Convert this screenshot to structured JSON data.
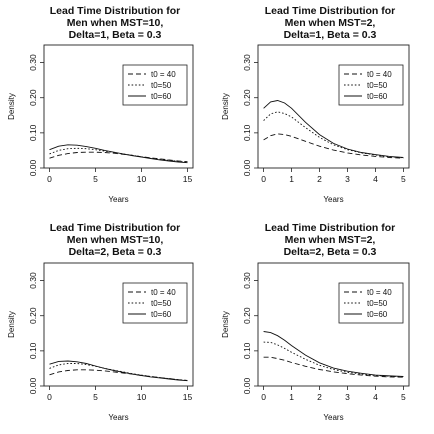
{
  "chart_data": [
    {
      "type": "line",
      "title": [
        "Lead Time Distribution for",
        "Men when MST=10,",
        "Delta=1, Beta = 0.3"
      ],
      "xlabel": "Years",
      "ylabel": "Density",
      "xlim": [
        0,
        15
      ],
      "ylim": [
        0,
        0.35
      ],
      "xticks": [
        0,
        5,
        10,
        15
      ],
      "yticks": [
        0.0,
        0.1,
        0.2,
        0.3
      ],
      "ytick_labels": [
        "0.00",
        "0.10",
        "0.20",
        "0.30"
      ],
      "legend": "top-right",
      "series": [
        {
          "name": "t0 = 40",
          "style": "dashed",
          "x": [
            0,
            1,
            2,
            3,
            4,
            5,
            6,
            7,
            8,
            9,
            10,
            11,
            12,
            13,
            14,
            15
          ],
          "y": [
            0.028,
            0.036,
            0.041,
            0.044,
            0.045,
            0.045,
            0.044,
            0.042,
            0.039,
            0.036,
            0.032,
            0.029,
            0.026,
            0.023,
            0.02,
            0.018
          ]
        },
        {
          "name": "t0=50",
          "style": "dotted",
          "x": [
            0,
            1,
            2,
            3,
            4,
            5,
            6,
            7,
            8,
            9,
            10,
            11,
            12,
            13,
            14,
            15
          ],
          "y": [
            0.04,
            0.05,
            0.055,
            0.056,
            0.055,
            0.052,
            0.048,
            0.044,
            0.04,
            0.036,
            0.032,
            0.028,
            0.025,
            0.022,
            0.019,
            0.016
          ]
        },
        {
          "name": "t0=60",
          "style": "solid",
          "x": [
            0,
            1,
            2,
            3,
            4,
            5,
            6,
            7,
            8,
            9,
            10,
            11,
            12,
            13,
            14,
            15
          ],
          "y": [
            0.052,
            0.062,
            0.066,
            0.065,
            0.061,
            0.056,
            0.05,
            0.045,
            0.04,
            0.035,
            0.031,
            0.027,
            0.023,
            0.02,
            0.017,
            0.015
          ]
        }
      ]
    },
    {
      "type": "line",
      "title": [
        "Lead Time Distribution for",
        "Men when MST=2,",
        "Delta=1, Beta = 0.3"
      ],
      "xlabel": "Years",
      "ylabel": "Density",
      "xlim": [
        0,
        5
      ],
      "ylim": [
        0,
        0.35
      ],
      "xticks": [
        0,
        1,
        2,
        3,
        4,
        5
      ],
      "yticks": [
        0.0,
        0.1,
        0.2,
        0.3
      ],
      "ytick_labels": [
        "0.00",
        "0.10",
        "0.20",
        "0.30"
      ],
      "legend": "top-right",
      "series": [
        {
          "name": "t0 = 40",
          "style": "dashed",
          "x": [
            0,
            0.25,
            0.5,
            0.75,
            1,
            1.5,
            2,
            2.5,
            3,
            3.5,
            4,
            4.5,
            5
          ],
          "y": [
            0.08,
            0.092,
            0.097,
            0.095,
            0.09,
            0.076,
            0.062,
            0.051,
            0.043,
            0.037,
            0.033,
            0.03,
            0.028
          ]
        },
        {
          "name": "t0=50",
          "style": "dotted",
          "x": [
            0,
            0.25,
            0.5,
            0.75,
            1,
            1.5,
            2,
            2.5,
            3,
            3.5,
            4,
            4.5,
            5
          ],
          "y": [
            0.135,
            0.154,
            0.16,
            0.155,
            0.145,
            0.115,
            0.087,
            0.066,
            0.052,
            0.043,
            0.037,
            0.032,
            0.029
          ]
        },
        {
          "name": "t0=60",
          "style": "solid",
          "x": [
            0,
            0.25,
            0.5,
            0.75,
            1,
            1.5,
            2,
            2.5,
            3,
            3.5,
            4,
            4.5,
            5
          ],
          "y": [
            0.17,
            0.188,
            0.192,
            0.185,
            0.17,
            0.13,
            0.095,
            0.07,
            0.054,
            0.044,
            0.038,
            0.033,
            0.03
          ]
        }
      ]
    },
    {
      "type": "line",
      "title": [
        "Lead Time Distribution for",
        "Men when MST=10,",
        "Delta=2, Beta = 0.3"
      ],
      "xlabel": "Years",
      "ylabel": "Density",
      "xlim": [
        0,
        15
      ],
      "ylim": [
        0,
        0.35
      ],
      "xticks": [
        0,
        5,
        10,
        15
      ],
      "yticks": [
        0.0,
        0.1,
        0.2,
        0.3
      ],
      "ytick_labels": [
        "0.00",
        "0.10",
        "0.20",
        "0.30"
      ],
      "legend": "top-right",
      "series": [
        {
          "name": "t0 = 40",
          "style": "dashed",
          "x": [
            0,
            1,
            2,
            3,
            4,
            5,
            6,
            7,
            8,
            9,
            10,
            11,
            12,
            13,
            14,
            15
          ],
          "y": [
            0.032,
            0.04,
            0.044,
            0.046,
            0.046,
            0.045,
            0.043,
            0.04,
            0.037,
            0.034,
            0.03,
            0.027,
            0.024,
            0.021,
            0.018,
            0.016
          ]
        },
        {
          "name": "t0=50",
          "style": "dotted",
          "x": [
            0,
            1,
            2,
            3,
            4,
            5,
            6,
            7,
            8,
            9,
            10,
            11,
            12,
            13,
            14,
            15
          ],
          "y": [
            0.05,
            0.06,
            0.064,
            0.064,
            0.061,
            0.056,
            0.05,
            0.045,
            0.04,
            0.035,
            0.031,
            0.027,
            0.024,
            0.021,
            0.018,
            0.016
          ]
        },
        {
          "name": "t0=60",
          "style": "solid",
          "x": [
            0,
            1,
            2,
            3,
            4,
            5,
            6,
            7,
            8,
            9,
            10,
            11,
            12,
            13,
            14,
            15
          ],
          "y": [
            0.062,
            0.07,
            0.071,
            0.069,
            0.064,
            0.057,
            0.05,
            0.044,
            0.039,
            0.034,
            0.03,
            0.026,
            0.023,
            0.02,
            0.017,
            0.015
          ]
        }
      ]
    },
    {
      "type": "line",
      "title": [
        "Lead Time Distribution for",
        "Men when MST=2,",
        "Delta=2, Beta = 0.3"
      ],
      "xlabel": "Years",
      "ylabel": "Density",
      "xlim": [
        0,
        5
      ],
      "ylim": [
        0,
        0.35
      ],
      "xticks": [
        0,
        1,
        2,
        3,
        4,
        5
      ],
      "yticks": [
        0.0,
        0.1,
        0.2,
        0.3
      ],
      "ytick_labels": [
        "0.00",
        "0.10",
        "0.20",
        "0.30"
      ],
      "legend": "top-right",
      "series": [
        {
          "name": "t0 = 40",
          "style": "dashed",
          "x": [
            0,
            0.25,
            0.5,
            0.75,
            1,
            1.5,
            2,
            2.5,
            3,
            3.5,
            4,
            4.5,
            5
          ],
          "y": [
            0.082,
            0.082,
            0.078,
            0.073,
            0.067,
            0.056,
            0.047,
            0.04,
            0.035,
            0.031,
            0.028,
            0.026,
            0.025
          ]
        },
        {
          "name": "t0=50",
          "style": "dotted",
          "x": [
            0,
            0.25,
            0.5,
            0.75,
            1,
            1.5,
            2,
            2.5,
            3,
            3.5,
            4,
            4.5,
            5
          ],
          "y": [
            0.125,
            0.124,
            0.117,
            0.107,
            0.096,
            0.076,
            0.059,
            0.047,
            0.039,
            0.034,
            0.03,
            0.028,
            0.026
          ]
        },
        {
          "name": "t0=60",
          "style": "solid",
          "x": [
            0,
            0.25,
            0.5,
            0.75,
            1,
            1.5,
            2,
            2.5,
            3,
            3.5,
            4,
            4.5,
            5
          ],
          "y": [
            0.155,
            0.152,
            0.143,
            0.13,
            0.115,
            0.088,
            0.066,
            0.051,
            0.042,
            0.036,
            0.031,
            0.029,
            0.027
          ]
        }
      ]
    }
  ]
}
